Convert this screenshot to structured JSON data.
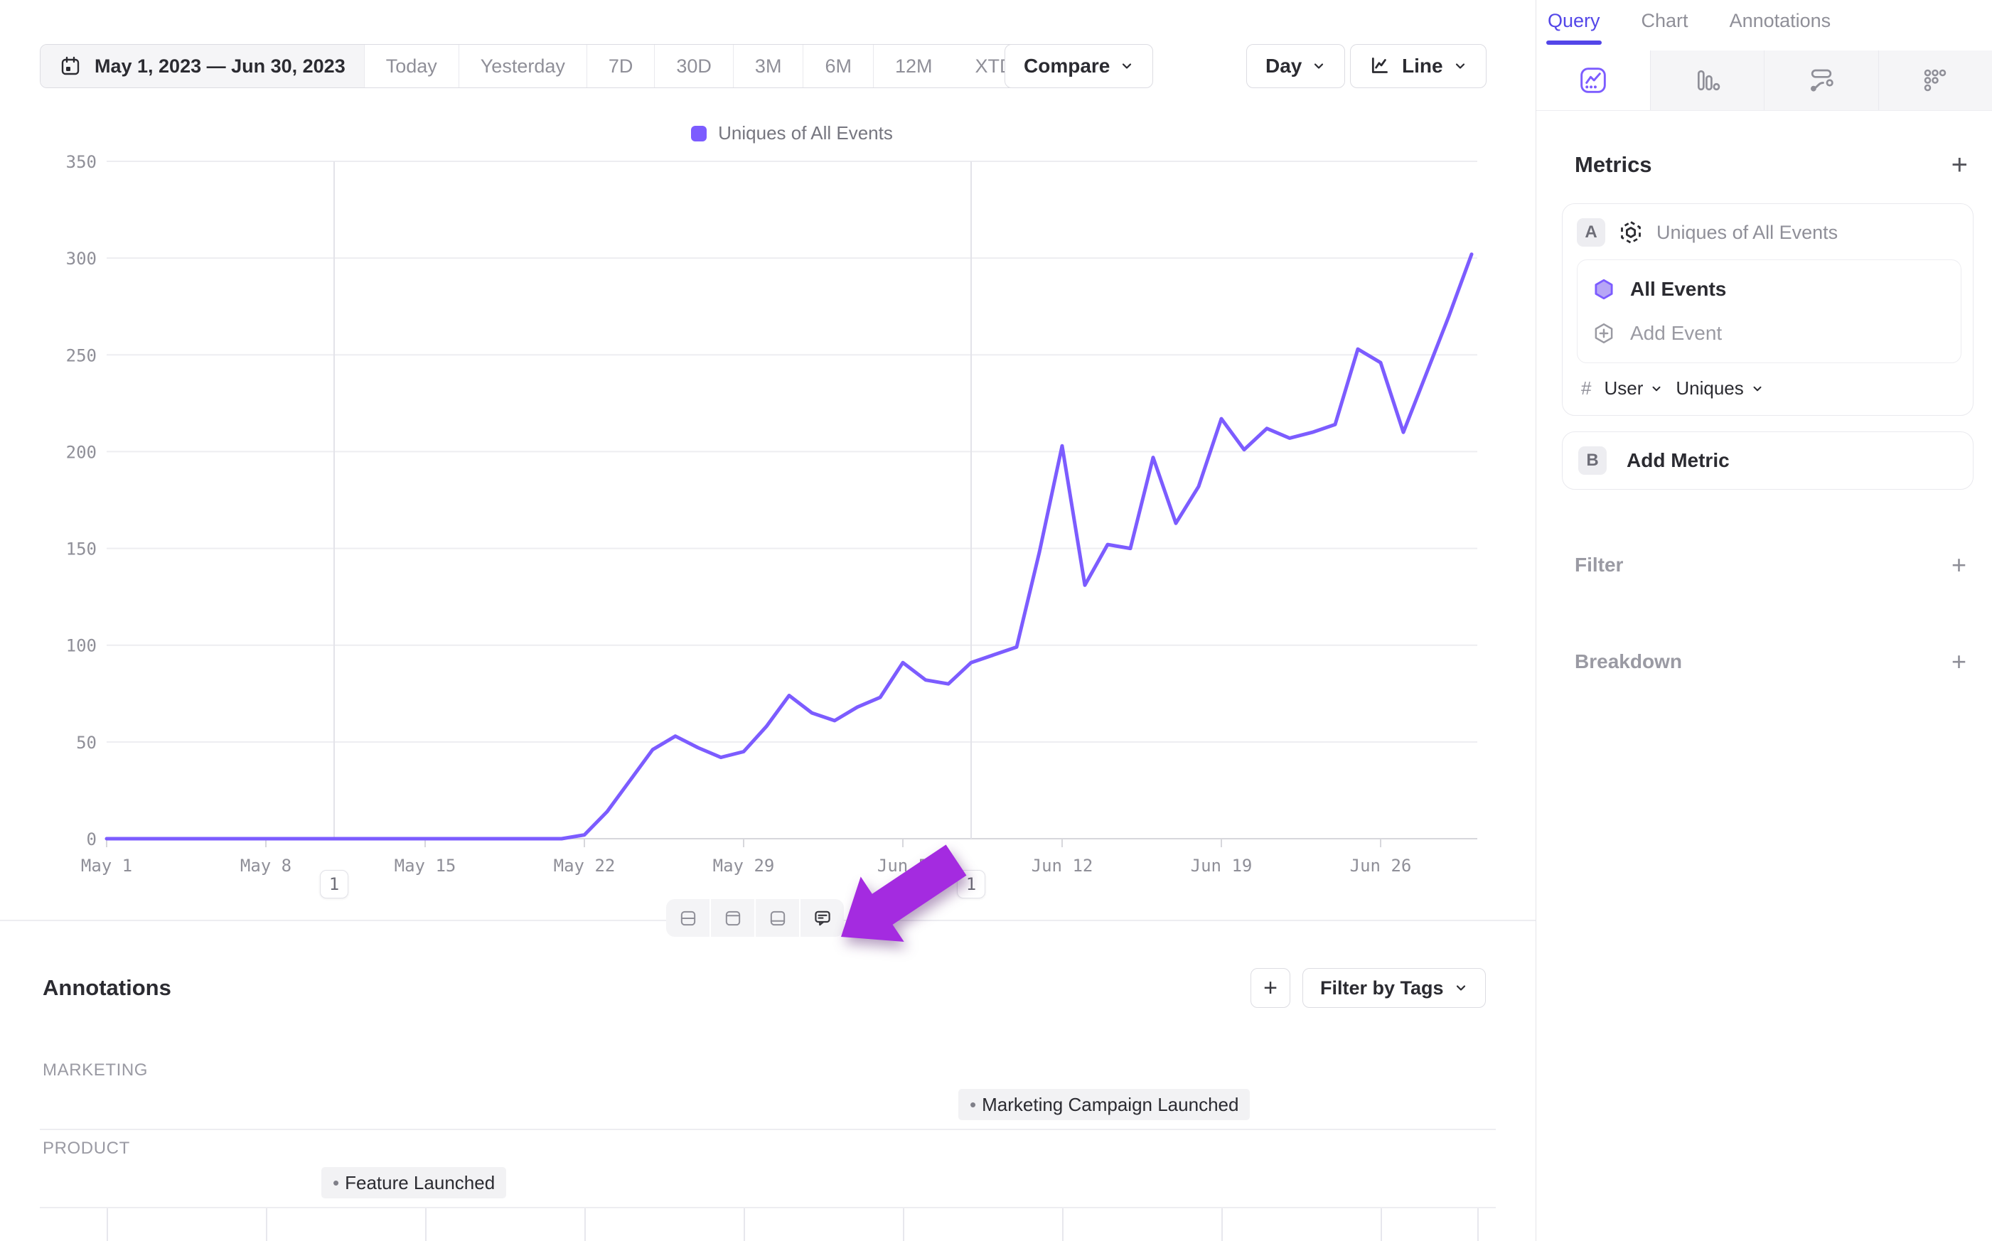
{
  "toolbar": {
    "date_range": "May 1, 2023 — Jun 30, 2023",
    "quick_ranges": [
      "Today",
      "Yesterday",
      "7D",
      "30D",
      "3M",
      "6M",
      "12M"
    ],
    "custom_range": {
      "label": "XTD"
    },
    "compare": "Compare",
    "granularity": "Day",
    "chart_type": "Line"
  },
  "legend": {
    "label": "Uniques of All Events",
    "color": "#7C5CFF"
  },
  "chart_data": {
    "type": "line",
    "title": "",
    "legend": [
      "Uniques of All Events"
    ],
    "x_start_date": "May 1, 2023",
    "x_end_date": "Jun 30, 2023",
    "x_unit": "day",
    "x_tick_labels": [
      "May 1",
      "May 8",
      "May 15",
      "May 22",
      "May 29",
      "Jun 5",
      "Jun 12",
      "Jun 19",
      "Jun 26"
    ],
    "x_tick_day_indices": [
      0,
      7,
      14,
      21,
      28,
      35,
      42,
      49,
      56
    ],
    "y_ticks": [
      0,
      50,
      100,
      150,
      200,
      250,
      300,
      350
    ],
    "ylim": [
      0,
      350
    ],
    "grid": "horizontal",
    "series": [
      {
        "name": "Uniques of All Events",
        "color": "#7C5CFF",
        "values": [
          0,
          0,
          0,
          0,
          0,
          0,
          0,
          0,
          0,
          0,
          0,
          0,
          0,
          0,
          0,
          0,
          0,
          0,
          0,
          0,
          0,
          2,
          14,
          30,
          46,
          53,
          47,
          42,
          45,
          58,
          74,
          65,
          61,
          68,
          73,
          91,
          82,
          80,
          91,
          95,
          99,
          148,
          203,
          131,
          152,
          150,
          197,
          163,
          182,
          217,
          201,
          212,
          207,
          210,
          214,
          253,
          246,
          210,
          240,
          270,
          302
        ]
      }
    ]
  },
  "chart_markers": [
    {
      "count": "1",
      "day_index": 10
    },
    {
      "count": "1",
      "day_index": 38
    }
  ],
  "view_toolbar": {
    "icons": [
      "split-rows-icon",
      "panel-top-icon",
      "panel-bottom-icon",
      "comment-icon"
    ],
    "highlighted": "comment-icon"
  },
  "annotations_panel": {
    "title": "Annotations",
    "add_button": "+",
    "filter_by_tags": "Filter by Tags",
    "groups": [
      {
        "category": "MARKETING",
        "annotations": [
          {
            "label": "Marketing Campaign Launched",
            "day_index": 38
          }
        ]
      },
      {
        "category": "PRODUCT",
        "annotations": [
          {
            "label": "Feature Launched",
            "day_index": 10
          }
        ]
      }
    ]
  },
  "sidebar": {
    "tabs": [
      {
        "label": "Query",
        "active": true
      },
      {
        "label": "Chart",
        "active": false
      },
      {
        "label": "Annotations",
        "active": false
      }
    ],
    "chart_type_tabs": [
      "insights-line-icon",
      "bar-chart-icon",
      "flow-icon",
      "grid-dots-icon"
    ],
    "metrics": {
      "title": "Metrics",
      "add_icon": "+",
      "metric_a": {
        "badge": "A",
        "label": "Uniques of All Events",
        "event": "All Events",
        "add_event": "Add Event",
        "aggregation": {
          "prefix": "#",
          "entity": "User",
          "measure": "Uniques"
        }
      },
      "metric_b": {
        "badge": "B",
        "label": "Add Metric"
      }
    },
    "filter": {
      "label": "Filter",
      "add_icon": "+"
    },
    "breakdown": {
      "label": "Breakdown",
      "add_icon": "+"
    }
  },
  "colors": {
    "accent_purple": "#7C5CFF",
    "tab_purple": "#5346E8",
    "arrow_purple": "#A42BE0",
    "text_dark": "#2B2B31",
    "text_gray": "#8F8F98",
    "border": "#DCDCE2",
    "bg_light": "#F5F5F7"
  }
}
